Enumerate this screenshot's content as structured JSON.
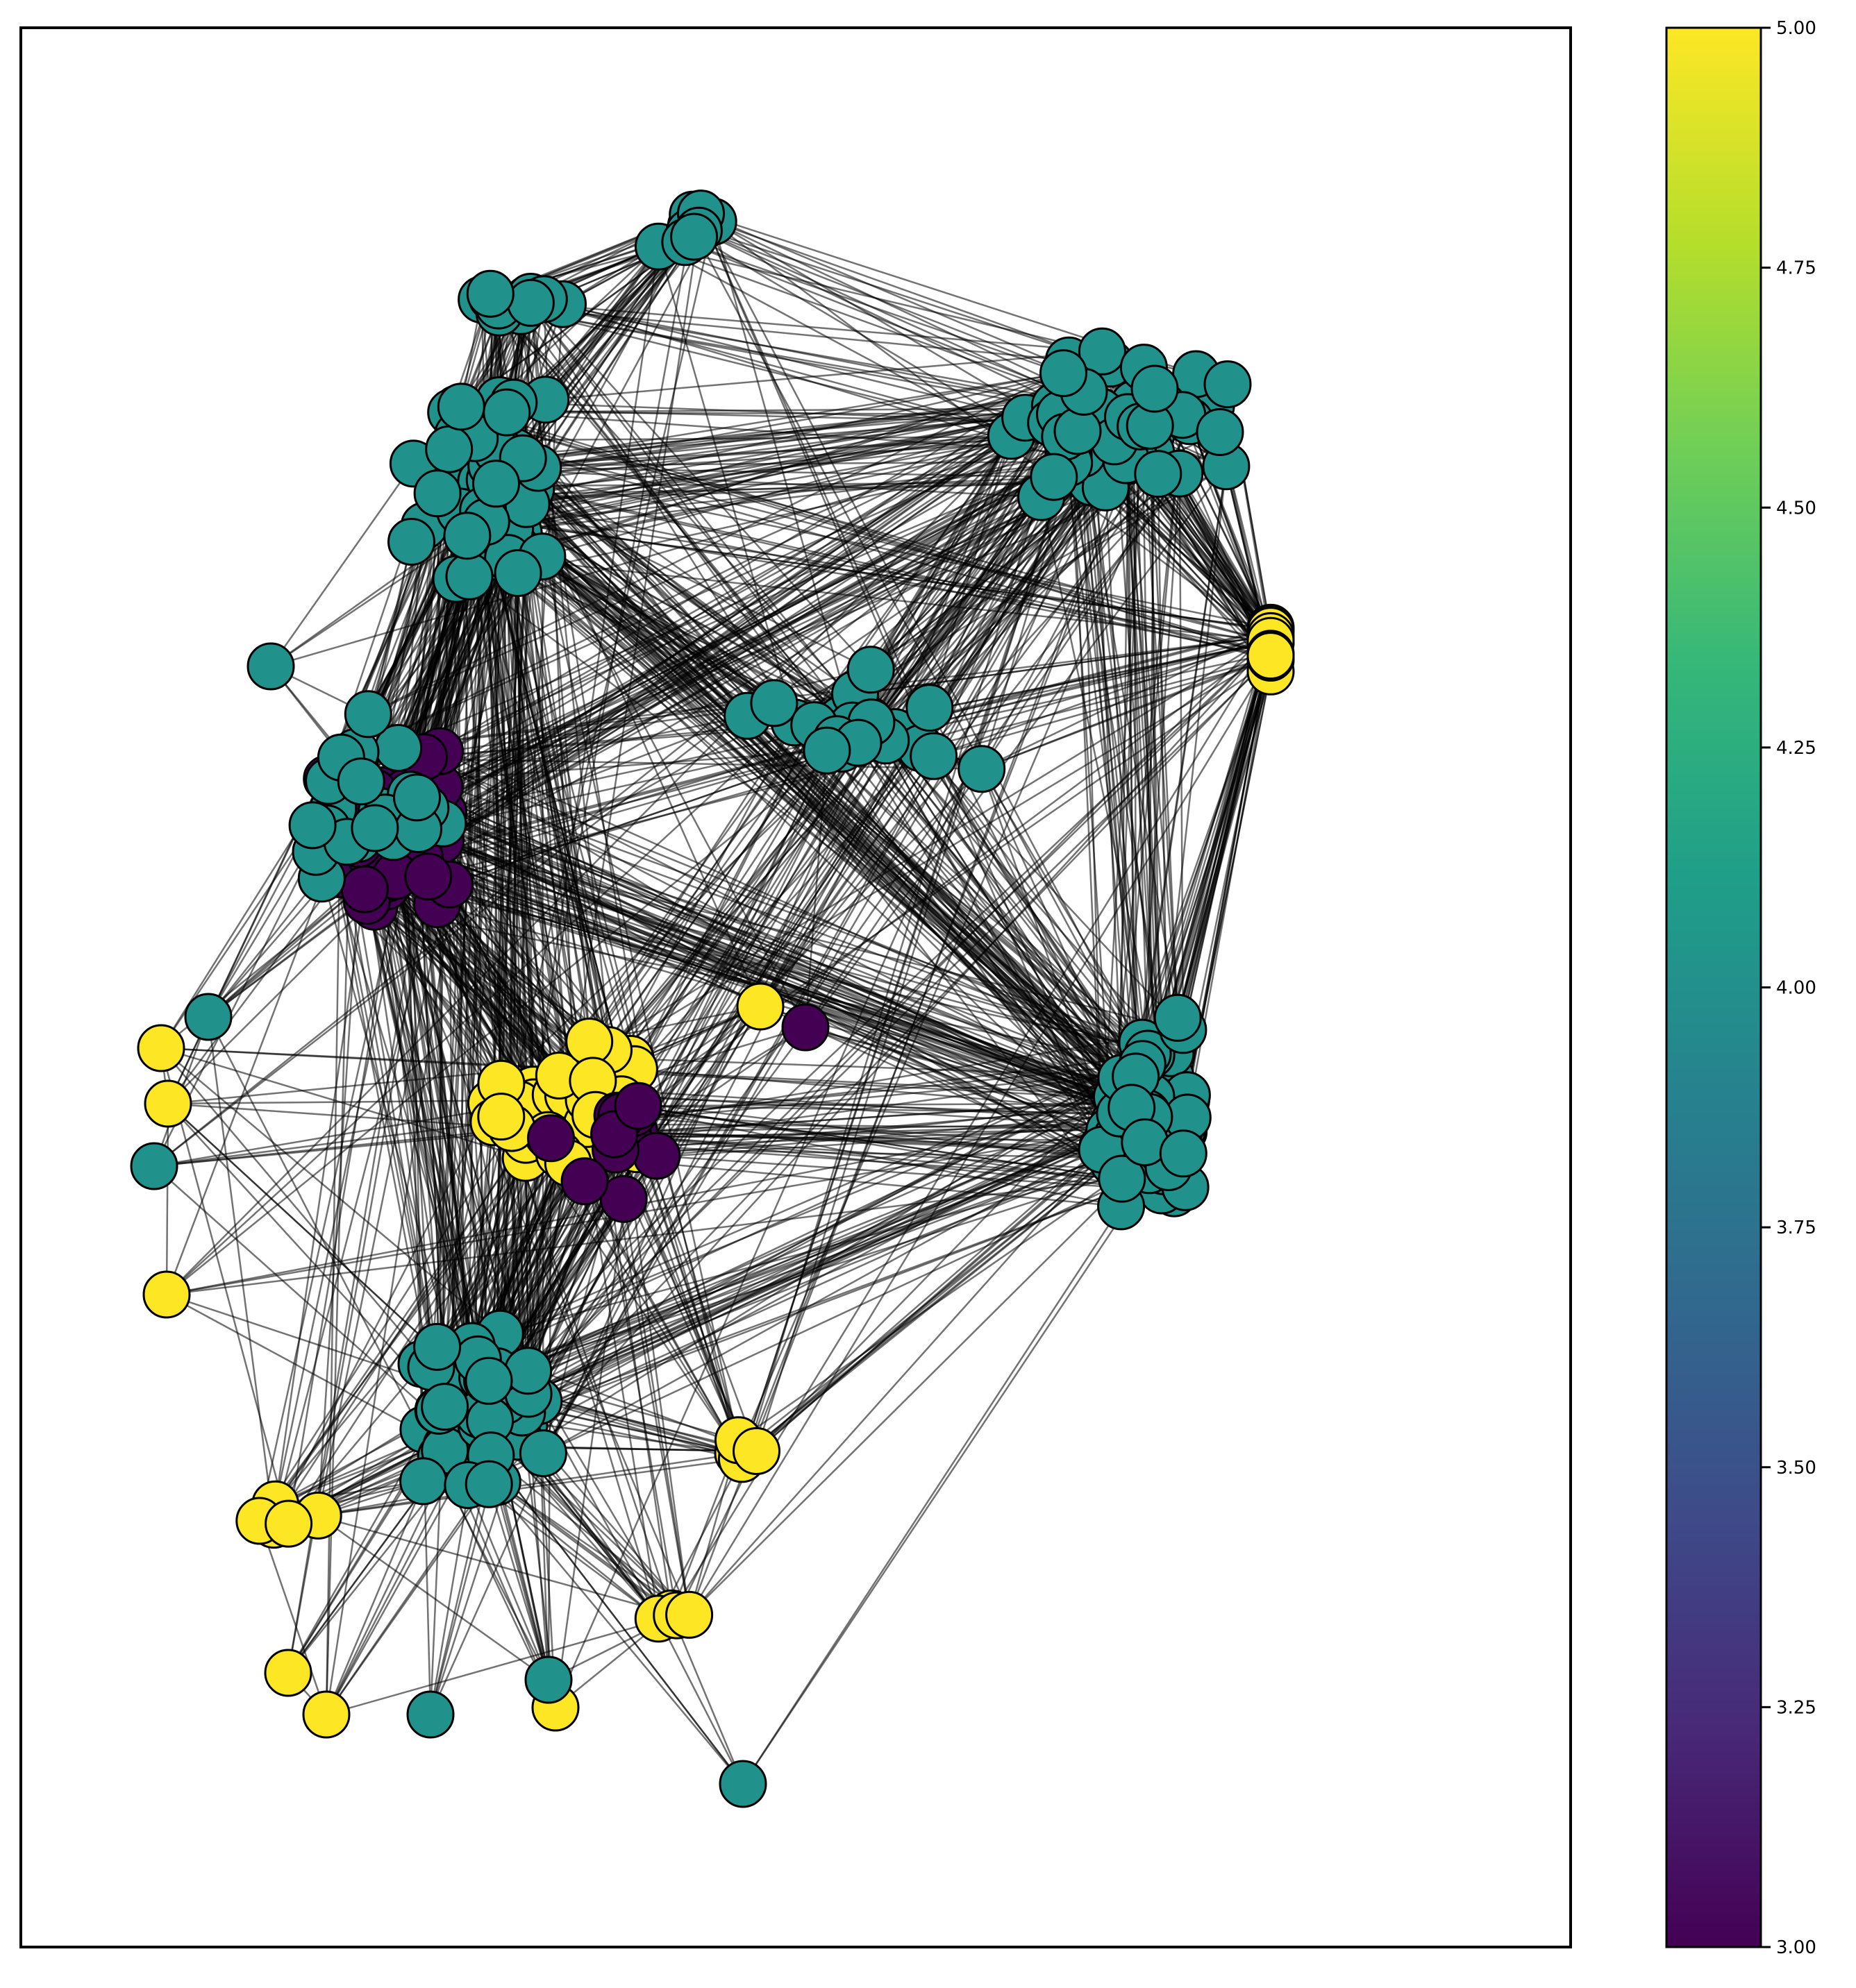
{
  "colorbar": {
    "ticks": [
      "3.00",
      "3.25",
      "3.50",
      "3.75",
      "4.00",
      "4.25",
      "4.50",
      "4.75",
      "5.00"
    ],
    "min": 3.0,
    "max": 5.0,
    "colormap": "viridis",
    "colormap_stops": [
      "#440154",
      "#482878",
      "#3e4a89",
      "#31688e",
      "#26828e",
      "#1f9e89",
      "#35b779",
      "#6ece58",
      "#b5de2b",
      "#fde725"
    ]
  },
  "graph": {
    "node_values": [
      3,
      4,
      5
    ],
    "node_colors": {
      "3": "#440154",
      "4": "#21918c",
      "5": "#fde725"
    },
    "edge_color": "#000000",
    "node_border": "#000000"
  }
}
